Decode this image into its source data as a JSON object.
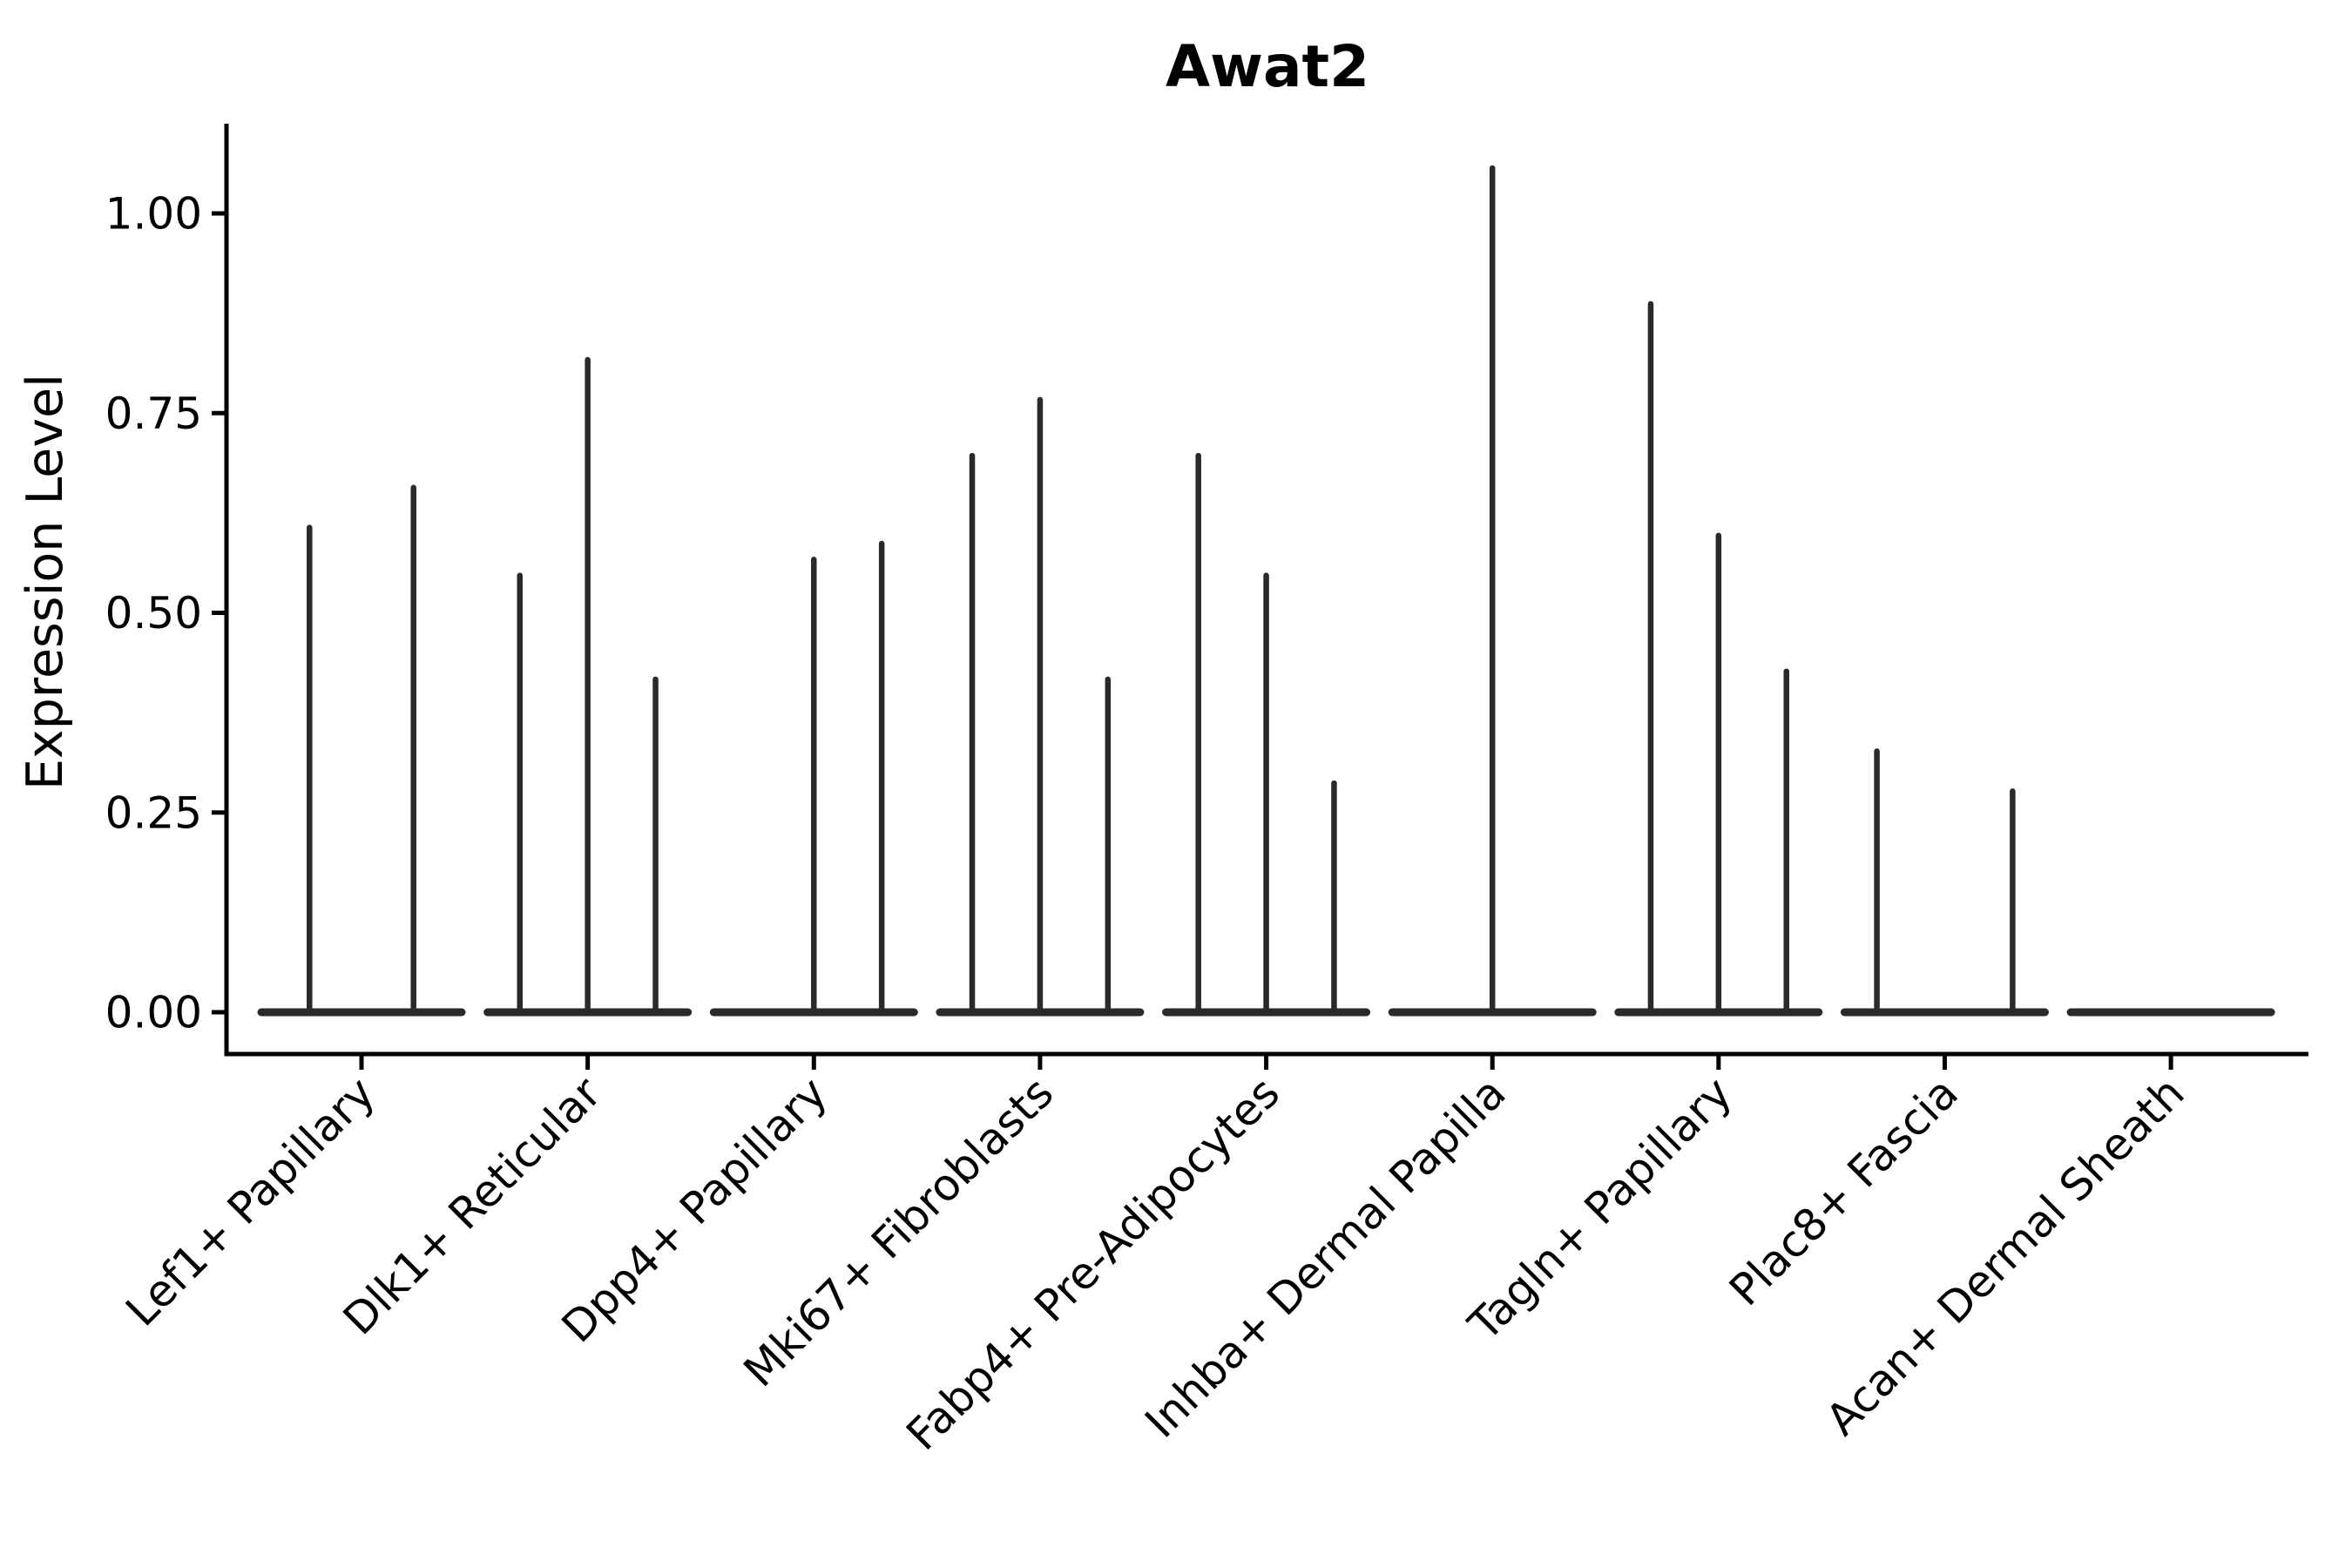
{
  "page": {
    "background": "#ffffff"
  },
  "chart_data": {
    "type": "violin",
    "title": "Awat2",
    "ylabel": "Expression Level",
    "xlabel": "",
    "grid": false,
    "legend": "none",
    "ylim": [
      -0.05,
      1.11
    ],
    "ytick_labels": [
      "0.00",
      "0.25",
      "0.50",
      "0.75",
      "1.00"
    ],
    "ytick_values": [
      0,
      0.25,
      0.5,
      0.75,
      1.0
    ],
    "categories": [
      "Lef1+ Papillary",
      "Dlk1+ Reticular",
      "Dpp4+ Papillary",
      "Mki67+ Fibroblasts",
      "Fabp4+ Pre-Adipocytes",
      "Inhba+ Dermal Papilla",
      "Tagln+ Papillary",
      "Plac8+ Fascia",
      "Acan+ Dermal Sheath"
    ],
    "groups": [
      {
        "category": "Lef1+ Papillary",
        "violins": [
          {
            "offset": -0.23,
            "peak": 0.61
          },
          {
            "offset": 0.23,
            "peak": 0.66
          }
        ]
      },
      {
        "category": "Dlk1+ Reticular",
        "violins": [
          {
            "offset": -0.3,
            "peak": 0.55
          },
          {
            "offset": 0.0,
            "peak": 0.82
          },
          {
            "offset": 0.3,
            "peak": 0.42
          }
        ]
      },
      {
        "category": "Dpp4+ Papillary",
        "violins": [
          {
            "offset": 0.0,
            "peak": 0.57
          },
          {
            "offset": 0.3,
            "peak": 0.59
          }
        ]
      },
      {
        "category": "Mki67+ Fibroblasts",
        "violins": [
          {
            "offset": -0.3,
            "peak": 0.7
          },
          {
            "offset": 0.0,
            "peak": 0.77
          },
          {
            "offset": 0.3,
            "peak": 0.42
          }
        ]
      },
      {
        "category": "Fabp4+ Pre-Adipocytes",
        "violins": [
          {
            "offset": -0.3,
            "peak": 0.7
          },
          {
            "offset": 0.0,
            "peak": 0.55
          },
          {
            "offset": 0.3,
            "peak": 0.29
          }
        ]
      },
      {
        "category": "Inhba+ Dermal Papilla",
        "violins": [
          {
            "offset": 0.0,
            "peak": 1.06
          }
        ]
      },
      {
        "category": "Tagln+ Papillary",
        "violins": [
          {
            "offset": -0.3,
            "peak": 0.89
          },
          {
            "offset": 0.0,
            "peak": 0.6
          },
          {
            "offset": 0.3,
            "peak": 0.43
          }
        ]
      },
      {
        "category": "Plac8+ Fascia",
        "violins": [
          {
            "offset": -0.3,
            "peak": 0.33
          },
          {
            "offset": 0.3,
            "peak": 0.28
          }
        ]
      },
      {
        "category": "Acan+ Dermal Sheath",
        "violins": []
      }
    ],
    "colors": {
      "ink": "#000000",
      "violin": "#2a2a2a",
      "background": "#ffffff"
    }
  }
}
